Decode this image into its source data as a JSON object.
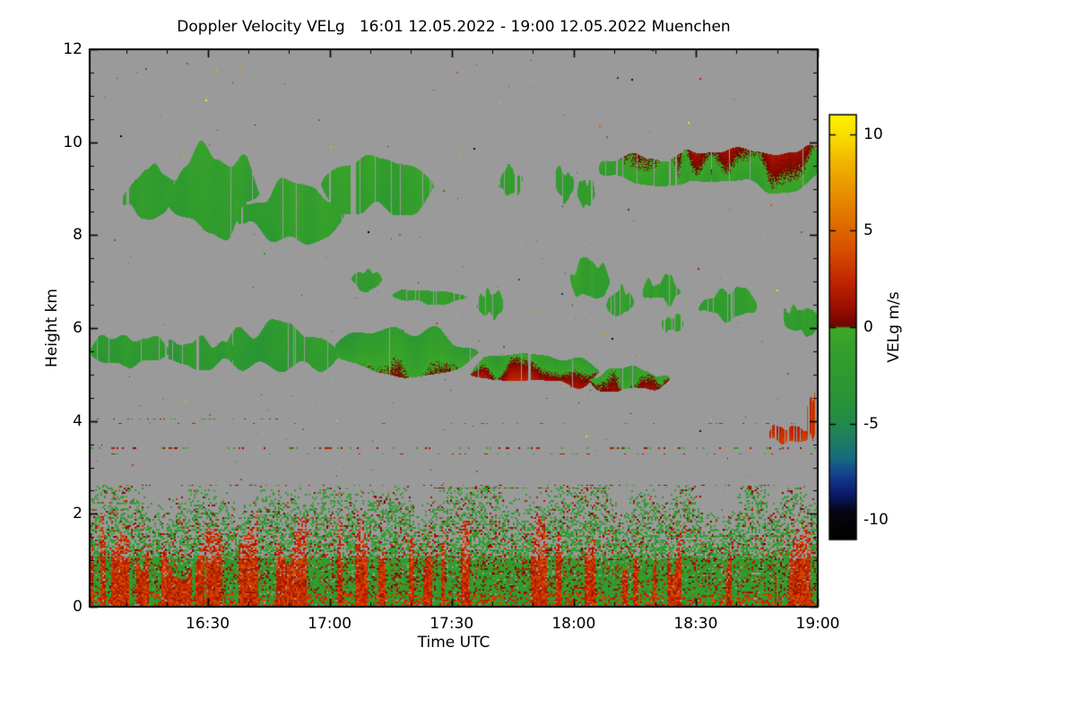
{
  "page": {
    "background_color": "#ffffff"
  },
  "chart_data": {
    "type": "heatmap",
    "title": "Doppler Velocity VELg   16:01 12.05.2022 - 19:00 12.05.2022 Muenchen",
    "xlabel": "Time UTC",
    "ylabel": "Height km",
    "x_range_hours": [
      16.0167,
      19.0
    ],
    "x_ticks": [
      {
        "v": 16.5,
        "label": "16:30"
      },
      {
        "v": 17.0,
        "label": "17:00"
      },
      {
        "v": 17.5,
        "label": "17:30"
      },
      {
        "v": 18.0,
        "label": "18:00"
      },
      {
        "v": 18.5,
        "label": "18:30"
      },
      {
        "v": 19.0,
        "label": "19:00"
      }
    ],
    "x_minor_step_hours": 0.166667,
    "y_range_km": [
      0,
      12
    ],
    "y_ticks": [
      0,
      2,
      4,
      6,
      8,
      10,
      12
    ],
    "y_minor_step_km": 0.5,
    "nodata_color": "#9a9a9a",
    "frame_color": "#000000",
    "colorbar": {
      "label": "VELg m/s",
      "range": [
        -11,
        11
      ],
      "ticks": [
        10,
        5,
        0,
        -5,
        -10
      ]
    },
    "colormap_stops": [
      [
        -11.0,
        "#000000"
      ],
      [
        -9.6,
        "#05050f"
      ],
      [
        -8.6,
        "#0d1b6e"
      ],
      [
        -7.6,
        "#14418f"
      ],
      [
        -6.8,
        "#176a80"
      ],
      [
        -6.0,
        "#1d7a67"
      ],
      [
        -5.0,
        "#218a4c"
      ],
      [
        -4.0,
        "#27913a"
      ],
      [
        -2.5,
        "#2e9930"
      ],
      [
        -1.0,
        "#35a02b"
      ],
      [
        -0.05,
        "#3da827"
      ],
      [
        0.05,
        "#6b0500"
      ],
      [
        1.0,
        "#9a0e00"
      ],
      [
        2.5,
        "#c32800"
      ],
      [
        4.0,
        "#d74f00"
      ],
      [
        5.5,
        "#e07000"
      ],
      [
        7.0,
        "#e89100"
      ],
      [
        8.5,
        "#f0b400"
      ],
      [
        9.8,
        "#f8da00"
      ],
      [
        11.0,
        "#fff200"
      ]
    ],
    "features": [
      {
        "kind": "cloud",
        "t": [
          16.14,
          16.4
        ],
        "h": [
          8.25,
          9.55
        ],
        "vt": -1.4,
        "vb": -1.8,
        "vvar": 0.8,
        "gap": 0.12,
        "seed": 11
      },
      {
        "kind": "cloud",
        "t": [
          16.29,
          16.73
        ],
        "h": [
          7.85,
          10.05
        ],
        "vt": -1.2,
        "vb": -2.0,
        "vvar": 0.9,
        "gap": 0.08,
        "seed": 12
      },
      {
        "kind": "cloud",
        "t": [
          16.61,
          17.07
        ],
        "h": [
          7.75,
          9.35
        ],
        "vt": -1.3,
        "vb": -1.9,
        "vvar": 0.9,
        "gap": 0.1,
        "seed": 13
      },
      {
        "kind": "cloud",
        "t": [
          16.96,
          17.43
        ],
        "h": [
          8.3,
          9.8
        ],
        "vt": -1.0,
        "vb": -1.8,
        "vvar": 1.1,
        "gap": 0.14,
        "seed": 14
      },
      {
        "kind": "cloud",
        "t": [
          17.69,
          17.79
        ],
        "h": [
          8.75,
          9.6
        ],
        "vt": -1.3,
        "vb": -1.6,
        "vvar": 0.6,
        "gap": 0.15,
        "seed": 15
      },
      {
        "kind": "cloud",
        "t": [
          17.92,
          18.0
        ],
        "h": [
          8.6,
          9.6
        ],
        "vt": -1.4,
        "vb": -1.7,
        "vvar": 0.6,
        "gap": 0.15,
        "seed": 16
      },
      {
        "kind": "cloud",
        "t": [
          18.01,
          18.09
        ],
        "h": [
          8.5,
          9.3
        ],
        "vt": -1.4,
        "vb": -1.7,
        "vvar": 0.6,
        "gap": 0.2,
        "seed": 17
      },
      {
        "kind": "cloud",
        "t": [
          18.1,
          18.6
        ],
        "h": [
          8.95,
          9.9
        ],
        "vt": -0.5,
        "vb": -1.5,
        "vvar": 1.3,
        "gap": 0.08,
        "seed": 18
      },
      {
        "kind": "cloud",
        "t": [
          18.44,
          19.0
        ],
        "h": [
          8.85,
          10.2
        ],
        "vt": 0.8,
        "vb": -1.2,
        "vvar": 1.5,
        "gap": 0.05,
        "taper": 0.12,
        "seed": 19
      },
      {
        "kind": "cloud",
        "t": [
          17.08,
          17.22
        ],
        "h": [
          6.75,
          7.35
        ],
        "vt": -1.3,
        "vb": -1.6,
        "vvar": 0.7,
        "gap": 0.1,
        "seed": 20
      },
      {
        "kind": "cloud",
        "t": [
          17.25,
          17.58
        ],
        "h": [
          6.5,
          6.88
        ],
        "vt": -1.5,
        "vb": -1.8,
        "vvar": 0.6,
        "gap": 0.15,
        "seed": 21
      },
      {
        "kind": "cloud",
        "t": [
          17.6,
          17.71
        ],
        "h": [
          6.15,
          6.95
        ],
        "vt": -1.4,
        "vb": -1.6,
        "vvar": 0.6,
        "gap": 0.1,
        "seed": 22
      },
      {
        "kind": "cloud",
        "t": [
          17.98,
          18.15
        ],
        "h": [
          6.55,
          7.6
        ],
        "vt": -1.3,
        "vb": -1.8,
        "vvar": 0.8,
        "gap": 0.1,
        "seed": 23
      },
      {
        "kind": "cloud",
        "t": [
          18.13,
          18.25
        ],
        "h": [
          6.25,
          6.95
        ],
        "vt": -1.4,
        "vb": -1.6,
        "vvar": 0.7,
        "gap": 0.1,
        "seed": 24
      },
      {
        "kind": "cloud",
        "t": [
          18.28,
          18.45
        ],
        "h": [
          6.45,
          7.2
        ],
        "vt": -1.3,
        "vb": -1.7,
        "vvar": 0.7,
        "gap": 0.1,
        "seed": 25
      },
      {
        "kind": "cloud",
        "t": [
          18.36,
          18.45
        ],
        "h": [
          5.85,
          6.35
        ],
        "vt": -1.2,
        "vb": -1.5,
        "vvar": 0.6,
        "gap": 0.15,
        "seed": 26
      },
      {
        "kind": "cloud",
        "t": [
          18.5,
          18.75
        ],
        "h": [
          6.05,
          6.95
        ],
        "vt": -1.5,
        "vb": -1.9,
        "vvar": 0.8,
        "gap": 0.1,
        "seed": 27
      },
      {
        "kind": "cloud",
        "t": [
          18.86,
          19.0
        ],
        "h": [
          5.8,
          6.55
        ],
        "vt": -1.6,
        "vb": -2.0,
        "vvar": 0.8,
        "gap": 0.08,
        "taper": 0.12,
        "seed": 28
      },
      {
        "kind": "cloud",
        "t": [
          16.0167,
          16.35
        ],
        "h": [
          5.15,
          5.95
        ],
        "vt": -2.0,
        "vb": -2.5,
        "vvar": 0.8,
        "gap": 0.05,
        "taper": 0.15,
        "seed": 29
      },
      {
        "kind": "cloud",
        "t": [
          16.3,
          16.62
        ],
        "h": [
          5.05,
          5.9
        ],
        "vt": -2.2,
        "vb": -2.6,
        "vvar": 0.8,
        "gap": 0.08,
        "seed": 30
      },
      {
        "kind": "cloud",
        "t": [
          16.55,
          17.06
        ],
        "h": [
          4.95,
          6.2
        ],
        "vt": -2.2,
        "vb": -2.8,
        "vvar": 1.0,
        "gap": 0.06,
        "seed": 31
      },
      {
        "kind": "cloud",
        "t": [
          17.0,
          17.63
        ],
        "h": [
          4.85,
          6.15
        ],
        "vt": -2.6,
        "vb": -0.5,
        "vvar": 1.2,
        "gap": 0.05,
        "seed": 32
      },
      {
        "kind": "cloud",
        "t": [
          17.56,
          18.13
        ],
        "h": [
          4.6,
          5.65
        ],
        "vt": -1.8,
        "vb": 1.2,
        "vvar": 1.3,
        "gap": 0.06,
        "seed": 33
      },
      {
        "kind": "cloud",
        "t": [
          18.05,
          18.4
        ],
        "h": [
          4.55,
          5.2
        ],
        "vt": -1.2,
        "vb": 0.3,
        "vvar": 1.2,
        "gap": 0.1,
        "seed": 34
      },
      {
        "kind": "cloud",
        "t": [
          18.79,
          18.98
        ],
        "h": [
          3.5,
          3.98
        ],
        "vt": 2.2,
        "vb": 3.2,
        "vvar": 0.8,
        "gap": 0.25,
        "seed": 35
      },
      {
        "kind": "cloud",
        "t": [
          18.955,
          19.0
        ],
        "h": [
          3.45,
          4.65
        ],
        "vt": 2.6,
        "vb": 2.6,
        "vvar": 1.2,
        "gap": 0.35,
        "taper": 0.1,
        "seed": 36
      },
      {
        "kind": "dash",
        "t": [
          16.0167,
          19.0
        ],
        "h": 3.42,
        "density": 0.22,
        "vels": [
          -1.5,
          0.8,
          1.8,
          -0.5
        ],
        "rows": 2,
        "seed": 41
      },
      {
        "kind": "dash",
        "t": [
          16.0167,
          19.0
        ],
        "h": 3.3,
        "density": 0.1,
        "vels": [
          1.5,
          -1.0
        ],
        "rows": 1,
        "seed": 46
      },
      {
        "kind": "dash",
        "t": [
          16.0167,
          19.0
        ],
        "h": 2.62,
        "density": 0.15,
        "vels": [
          -1.5,
          1.2,
          0.5
        ],
        "rows": 1,
        "seed": 42
      },
      {
        "kind": "dash",
        "t": [
          17.42,
          18.12
        ],
        "h": 2.56,
        "density": 0.55,
        "vels": [
          0.6,
          1.0,
          -0.8
        ],
        "rows": 1,
        "seed": 43
      },
      {
        "kind": "dash",
        "t": [
          16.0167,
          16.8
        ],
        "h": 4.05,
        "density": 0.12,
        "vels": [
          -1.0,
          1.5
        ],
        "rows": 1,
        "seed": 44
      },
      {
        "kind": "dash",
        "t": [
          16.0167,
          19.0
        ],
        "h": 3.95,
        "density": 0.06,
        "vels": [
          -1.0,
          1.5,
          -6.0
        ],
        "rows": 1,
        "seed": 45
      },
      {
        "kind": "boundary",
        "t": [
          16.0167,
          19.0
        ],
        "h_top": 2.6,
        "red_fraction_left": 0.4,
        "red_fraction_right": 0.25,
        "seed": 47
      }
    ],
    "scatter_noise": {
      "count": 320,
      "vel_range": [
        -11,
        11
      ],
      "seed": 42
    }
  }
}
